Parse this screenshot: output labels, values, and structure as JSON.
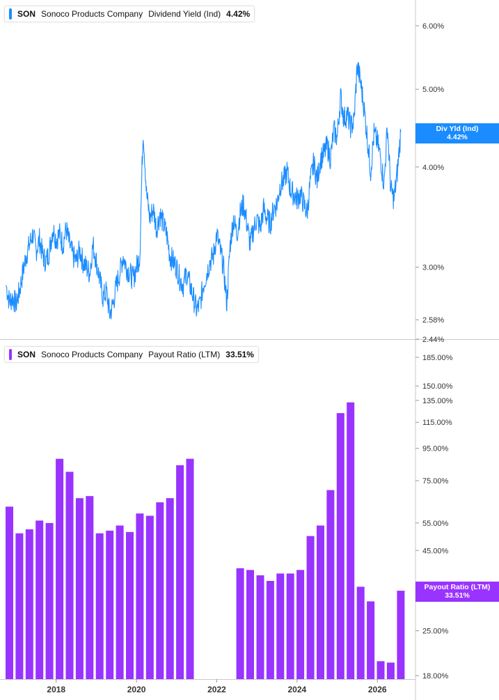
{
  "chart_data": [
    {
      "type": "line",
      "ticker": "SON",
      "company": "Sonoco Products Company",
      "metric": "Dividend Yield (Ind)",
      "current_value": "4.42%",
      "tag_label": "Div Yld (Ind)",
      "tag_value": "4.42%",
      "color": "#1a8cff",
      "y_scale": "log",
      "ylim": [
        2.44,
        6.5
      ],
      "y_ticks": [
        "6.00%",
        "5.00%",
        "4.00%",
        "3.00%",
        "2.58%",
        "2.44%"
      ],
      "x_start": "2016-10",
      "x_end": "2026-08",
      "points": [
        [
          "2016-10",
          2.85
        ],
        [
          "2016-11",
          2.72
        ],
        [
          "2016-12",
          2.75
        ],
        [
          "2017-01",
          2.7
        ],
        [
          "2017-02",
          2.8
        ],
        [
          "2017-03",
          2.95
        ],
        [
          "2017-04",
          3.1
        ],
        [
          "2017-05",
          3.2
        ],
        [
          "2017-06",
          3.3
        ],
        [
          "2017-07",
          3.15
        ],
        [
          "2017-08",
          3.25
        ],
        [
          "2017-09",
          3.1
        ],
        [
          "2017-10",
          3.05
        ],
        [
          "2017-11",
          3.15
        ],
        [
          "2017-12",
          3.35
        ],
        [
          "2018-01",
          3.25
        ],
        [
          "2018-02",
          3.3
        ],
        [
          "2018-03",
          3.2
        ],
        [
          "2018-04",
          3.35
        ],
        [
          "2018-05",
          3.2
        ],
        [
          "2018-06",
          3.1
        ],
        [
          "2018-07",
          3.05
        ],
        [
          "2018-08",
          3.15
        ],
        [
          "2018-09",
          3.05
        ],
        [
          "2018-10",
          3.0
        ],
        [
          "2018-11",
          2.95
        ],
        [
          "2018-12",
          3.2
        ],
        [
          "2019-01",
          3.05
        ],
        [
          "2019-02",
          2.9
        ],
        [
          "2019-03",
          2.75
        ],
        [
          "2019-04",
          2.8
        ],
        [
          "2019-05",
          2.62
        ],
        [
          "2019-06",
          2.7
        ],
        [
          "2019-07",
          2.85
        ],
        [
          "2019-08",
          2.95
        ],
        [
          "2019-09",
          3.1
        ],
        [
          "2019-10",
          3.0
        ],
        [
          "2019-11",
          2.95
        ],
        [
          "2019-12",
          2.9
        ],
        [
          "2020-01",
          3.0
        ],
        [
          "2020-02",
          3.1
        ],
        [
          "2020-03",
          4.45
        ],
        [
          "2020-04",
          3.7
        ],
        [
          "2020-05",
          3.45
        ],
        [
          "2020-06",
          3.55
        ],
        [
          "2020-07",
          3.35
        ],
        [
          "2020-08",
          3.5
        ],
        [
          "2020-09",
          3.4
        ],
        [
          "2020-10",
          3.3
        ],
        [
          "2020-11",
          3.1
        ],
        [
          "2020-12",
          3.05
        ],
        [
          "2021-01",
          3.0
        ],
        [
          "2021-02",
          2.9
        ],
        [
          "2021-03",
          2.85
        ],
        [
          "2021-04",
          2.95
        ],
        [
          "2021-05",
          2.85
        ],
        [
          "2021-06",
          2.75
        ],
        [
          "2021-07",
          2.65
        ],
        [
          "2021-08",
          2.7
        ],
        [
          "2021-09",
          2.85
        ],
        [
          "2021-10",
          2.95
        ],
        [
          "2021-11",
          3.05
        ],
        [
          "2021-12",
          3.1
        ],
        [
          "2022-01",
          3.3
        ],
        [
          "2022-02",
          3.15
        ],
        [
          "2022-03",
          3.0
        ],
        [
          "2022-04",
          2.7
        ],
        [
          "2022-05",
          3.2
        ],
        [
          "2022-06",
          3.45
        ],
        [
          "2022-07",
          3.3
        ],
        [
          "2022-08",
          3.5
        ],
        [
          "2022-09",
          3.6
        ],
        [
          "2022-10",
          3.4
        ],
        [
          "2022-11",
          3.2
        ],
        [
          "2022-12",
          3.35
        ],
        [
          "2023-01",
          3.45
        ],
        [
          "2023-02",
          3.35
        ],
        [
          "2023-03",
          3.55
        ],
        [
          "2023-04",
          3.45
        ],
        [
          "2023-05",
          3.4
        ],
        [
          "2023-06",
          3.55
        ],
        [
          "2023-07",
          3.6
        ],
        [
          "2023-08",
          3.8
        ],
        [
          "2023-09",
          3.85
        ],
        [
          "2023-10",
          3.95
        ],
        [
          "2023-11",
          3.75
        ],
        [
          "2023-12",
          3.7
        ],
        [
          "2024-01",
          3.65
        ],
        [
          "2024-02",
          3.7
        ],
        [
          "2024-03",
          3.6
        ],
        [
          "2024-04",
          3.5
        ],
        [
          "2024-05",
          3.85
        ],
        [
          "2024-06",
          4.05
        ],
        [
          "2024-07",
          3.85
        ],
        [
          "2024-08",
          4.1
        ],
        [
          "2024-09",
          4.15
        ],
        [
          "2024-10",
          4.25
        ],
        [
          "2024-11",
          4.1
        ],
        [
          "2024-12",
          4.45
        ],
        [
          "2025-01",
          4.35
        ],
        [
          "2025-02",
          4.9
        ],
        [
          "2025-03",
          4.6
        ],
        [
          "2025-04",
          4.65
        ],
        [
          "2025-05",
          4.5
        ],
        [
          "2025-06",
          4.55
        ],
        [
          "2025-07",
          5.35
        ],
        [
          "2025-08",
          5.1
        ],
        [
          "2025-09",
          4.75
        ],
        [
          "2025-10",
          4.35
        ],
        [
          "2025-11",
          3.95
        ],
        [
          "2025-12",
          4.4
        ],
        [
          "2026-01",
          4.3
        ],
        [
          "2026-02",
          4.1
        ],
        [
          "2026-03",
          3.8
        ],
        [
          "2026-04",
          4.5
        ],
        [
          "2026-05",
          3.75
        ],
        [
          "2026-06",
          3.65
        ],
        [
          "2026-07",
          3.95
        ],
        [
          "2026-08",
          4.42
        ]
      ]
    },
    {
      "type": "bar",
      "ticker": "SON",
      "company": "Sonoco Products Company",
      "metric": "Payout Ratio (LTM)",
      "current_value": "33.51%",
      "tag_label": "Payout Ratio (LTM)",
      "tag_value": "33.51%",
      "color": "#9933ff",
      "y_scale": "log",
      "ylim": [
        18,
        200
      ],
      "y_ticks": [
        "185.00%",
        "150.00%",
        "135.00%",
        "115.00%",
        "95.00%",
        "75.00%",
        "55.00%",
        "45.00%",
        "25.00%",
        "18.00%"
      ],
      "x_start": "2016-10",
      "x_end": "2026-08",
      "bars": [
        [
          "2016-11",
          62
        ],
        [
          "2017-02",
          51
        ],
        [
          "2017-05",
          52.5
        ],
        [
          "2017-08",
          56
        ],
        [
          "2017-11",
          55
        ],
        [
          "2018-02",
          88
        ],
        [
          "2018-05",
          80
        ],
        [
          "2018-08",
          66
        ],
        [
          "2018-11",
          67
        ],
        [
          "2019-02",
          51
        ],
        [
          "2019-05",
          52
        ],
        [
          "2019-08",
          54
        ],
        [
          "2019-11",
          51.5
        ],
        [
          "2020-02",
          59
        ],
        [
          "2020-05",
          58
        ],
        [
          "2020-08",
          64
        ],
        [
          "2020-11",
          66
        ],
        [
          "2021-02",
          84
        ],
        [
          "2021-05",
          88
        ],
        [
          "2022-08",
          39.5
        ],
        [
          "2022-11",
          39
        ],
        [
          "2023-02",
          37.5
        ],
        [
          "2023-05",
          36
        ],
        [
          "2023-08",
          38
        ],
        [
          "2023-11",
          38
        ],
        [
          "2024-02",
          39
        ],
        [
          "2024-05",
          50
        ],
        [
          "2024-08",
          54
        ],
        [
          "2024-11",
          70
        ],
        [
          "2025-02",
          123
        ],
        [
          "2025-05",
          133
        ],
        [
          "2025-08",
          34.5
        ],
        [
          "2025-11",
          31
        ],
        [
          "2026-02",
          20
        ],
        [
          "2026-05",
          19.8
        ],
        [
          "2026-08",
          33.51
        ]
      ]
    }
  ],
  "x_axis": {
    "ticks": [
      "2018",
      "2020",
      "2022",
      "2024",
      "2026"
    ]
  }
}
